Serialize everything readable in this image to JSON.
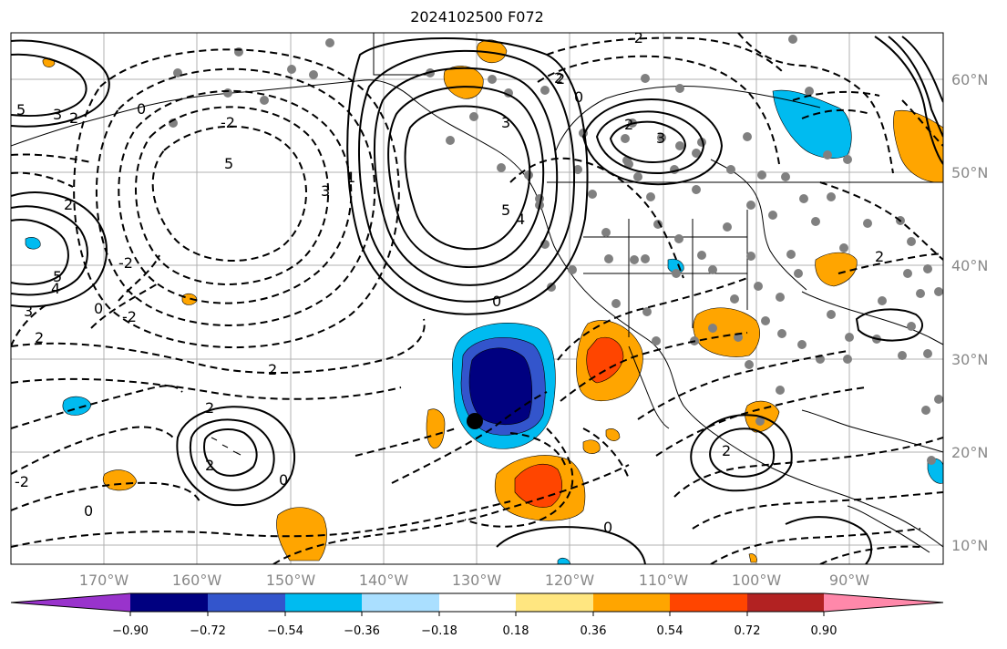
{
  "title": "2024102500 F072",
  "map": {
    "lat_labels": [
      "60°N",
      "50°N",
      "40°N",
      "30°N",
      "20°N",
      "10°N"
    ],
    "lon_labels": [
      "170°W",
      "160°W",
      "150°W",
      "140°W",
      "130°W",
      "120°W",
      "110°W",
      "100°W",
      "90°W"
    ],
    "contour_labels": [
      "5",
      "3",
      "2",
      "0",
      "-2",
      "2",
      "5",
      "3",
      "2",
      "0",
      "4",
      "3",
      "5",
      "2",
      "0",
      "-2",
      "2",
      "-2",
      "2",
      "0",
      "-2",
      "5",
      "4",
      "2",
      "3",
      "0",
      "1",
      "-2",
      "0",
      "2",
      "2",
      "3",
      "2",
      "2",
      "0"
    ]
  },
  "colorbar": {
    "tick_labels": [
      "−0.90",
      "−0.72",
      "−0.54",
      "−0.36",
      "−0.18",
      "0.18",
      "0.36",
      "0.54",
      "0.72",
      "0.90"
    ],
    "colors": {
      "under": "#9933cc",
      "bins": [
        "#000080",
        "#3355cc",
        "#00bbf0",
        "#aadfff",
        "#ffffff",
        "#ffe680",
        "#ffa500",
        "#ff4500",
        "#b22222",
        "#ff88aa"
      ],
      "over": "#ff88aa"
    }
  },
  "colors": {
    "grid": "#b0b0b0",
    "contour": "#000000",
    "dots": "#808080"
  }
}
